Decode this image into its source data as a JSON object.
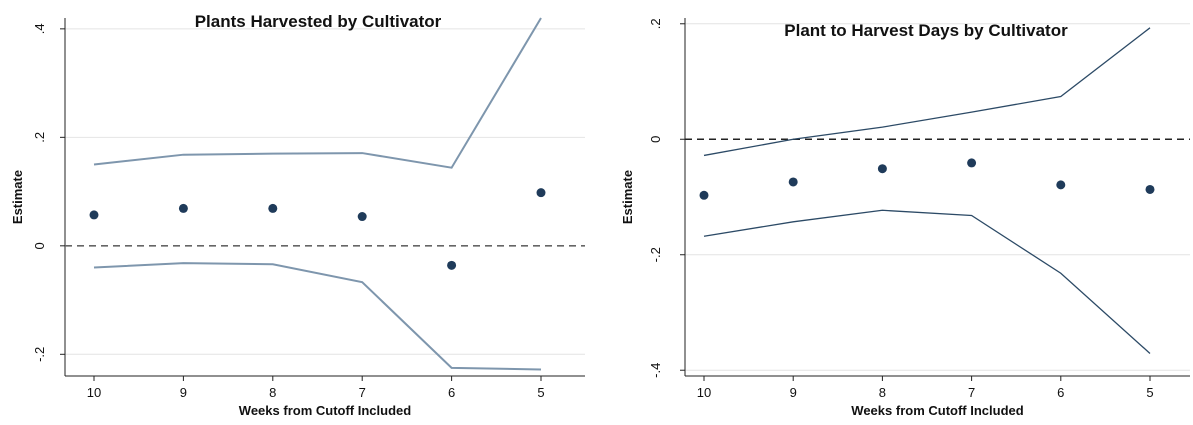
{
  "chart_data": [
    {
      "type": "scatter",
      "title": "Plants Harvested by Cultivator",
      "xlabel": "Weeks from Cutoff Included",
      "ylabel": "Estimate",
      "categories": [
        "10",
        "9",
        "8",
        "7",
        "6",
        "5"
      ],
      "yticks": [
        -0.2,
        0,
        0.2,
        0.4
      ],
      "ytick_labels": [
        "-.2",
        "0",
        ".2",
        ".4"
      ],
      "ylim": [
        -0.24,
        0.42
      ],
      "grid": true,
      "reference_line": 0,
      "series": [
        {
          "role": "estimate",
          "values": [
            0.057,
            0.069,
            0.069,
            0.054,
            -0.036,
            0.098
          ]
        },
        {
          "role": "upper_ci",
          "values": [
            0.15,
            0.168,
            0.17,
            0.171,
            0.144,
            0.42
          ]
        },
        {
          "role": "lower_ci",
          "values": [
            -0.04,
            -0.032,
            -0.034,
            -0.067,
            -0.225,
            -0.228
          ]
        }
      ],
      "colors": {
        "points": "#1f3b5a",
        "ci": "#7e96ad",
        "reference": "#666666",
        "grid": "#e4e4e4"
      }
    },
    {
      "type": "scatter",
      "title": "Plant to Harvest Days by Cultivator",
      "xlabel": "Weeks from Cutoff Included",
      "ylabel": "Estimate",
      "categories": [
        "10",
        "9",
        "8",
        "7",
        "6",
        "5"
      ],
      "yticks": [
        -0.4,
        -0.2,
        0,
        0.2
      ],
      "ytick_labels": [
        "-.4",
        "-.2",
        "0",
        ".2"
      ],
      "ylim": [
        -0.41,
        0.21
      ],
      "grid": true,
      "reference_line": 0,
      "series": [
        {
          "role": "estimate",
          "values": [
            -0.097,
            -0.074,
            -0.051,
            -0.041,
            -0.079,
            -0.087
          ]
        },
        {
          "role": "upper_ci",
          "values": [
            -0.028,
            0.0,
            0.021,
            0.047,
            0.074,
            0.193
          ]
        },
        {
          "role": "lower_ci",
          "values": [
            -0.168,
            -0.143,
            -0.123,
            -0.132,
            -0.232,
            -0.371
          ]
        }
      ],
      "colors": {
        "points": "#1f3b5a",
        "ci": "#2c4a66",
        "reference": "#222222",
        "grid": "#e4e4e4"
      }
    }
  ]
}
